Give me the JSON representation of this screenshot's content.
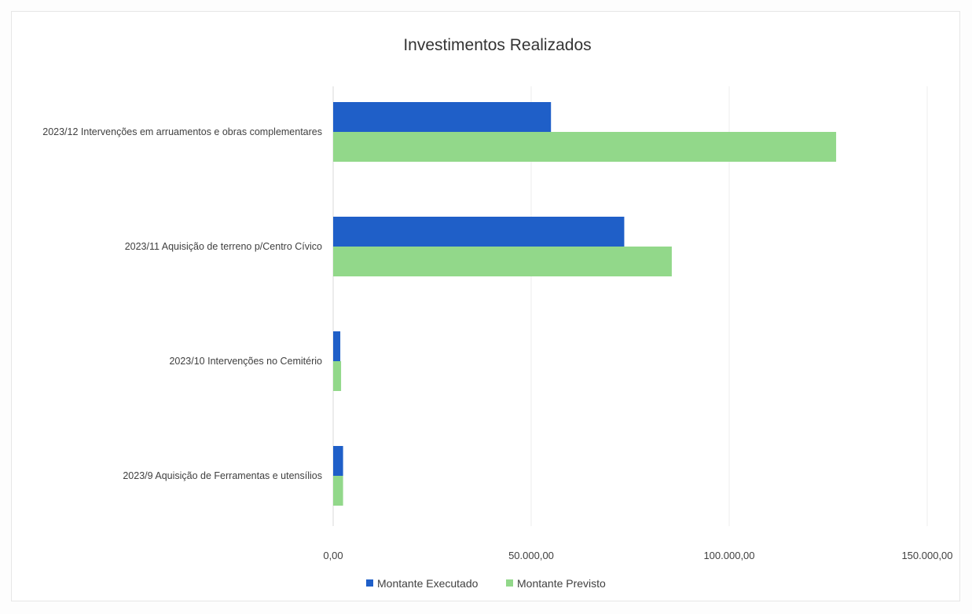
{
  "chart_data": {
    "type": "bar",
    "orientation": "horizontal",
    "title": "Investimentos Realizados",
    "xlabel": "",
    "ylabel": "",
    "categories": [
      "2023/12 Intervenções em arruamentos e obras complementares",
      "2023/11 Aquisição de terreno p/Centro Cívico",
      "2023/10 Intervenções no Cemitério",
      "2023/9 Aquisição de Ferramentas e utensílios"
    ],
    "series": [
      {
        "name": "Montante Executado",
        "color": "#1f5fc8",
        "values": [
          55000,
          73500,
          1800,
          2500
        ]
      },
      {
        "name": "Montante Previsto",
        "color": "#92d88a",
        "values": [
          127000,
          85500,
          2000,
          2500
        ]
      }
    ],
    "xlim": [
      0,
      150000
    ],
    "x_ticks": [
      0,
      50000,
      100000,
      150000
    ],
    "x_tick_labels": [
      "0,00",
      "50.000,00",
      "100.000,00",
      "150.000,00"
    ],
    "grid": true,
    "legend_position": "bottom"
  }
}
